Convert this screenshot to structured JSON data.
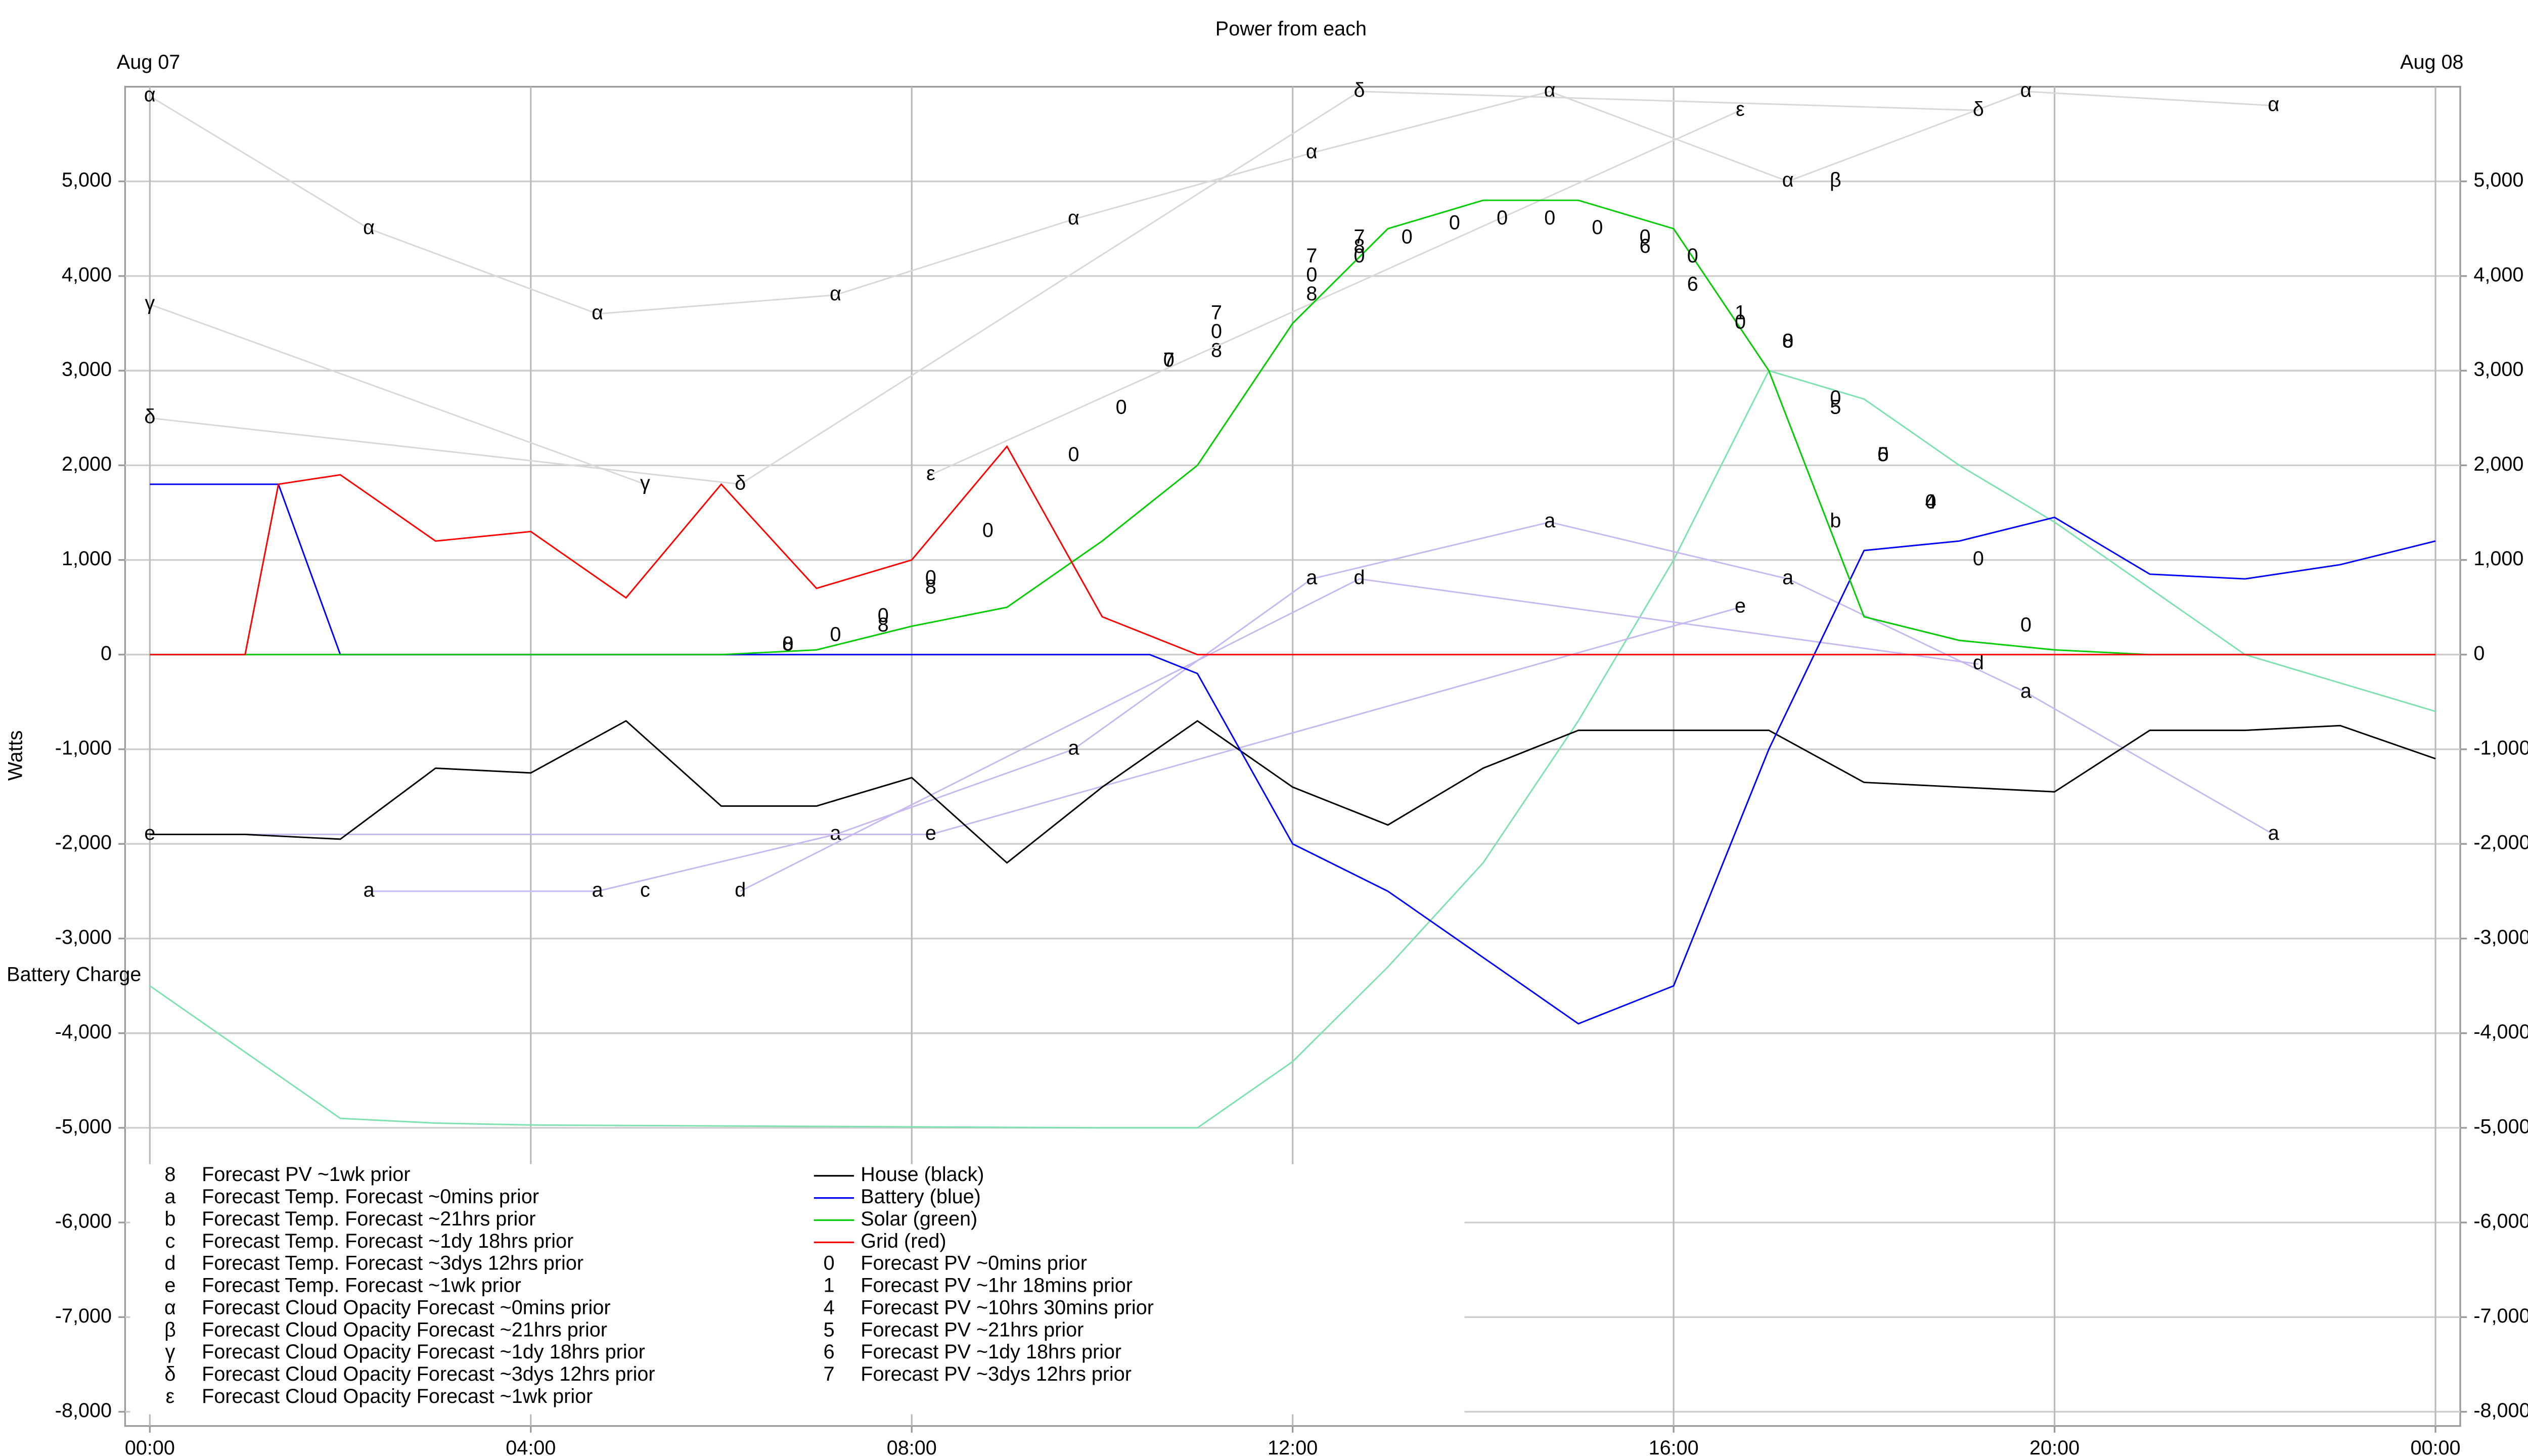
{
  "chart_data": {
    "type": "line",
    "title": "Power from each",
    "y_label": "Watts",
    "date_start": "Aug 07",
    "date_end": "Aug 08",
    "xlim": [
      -0.26,
      24.26
    ],
    "xticks": [
      {
        "value": 0,
        "label": "00:00"
      },
      {
        "value": 4,
        "label": "04:00"
      },
      {
        "value": 8,
        "label": "08:00"
      },
      {
        "value": 12,
        "label": "12:00"
      },
      {
        "value": 16,
        "label": "16:00"
      },
      {
        "value": 20,
        "label": "20:00"
      },
      {
        "value": 24,
        "label": "00:00"
      }
    ],
    "ylim": [
      -8150,
      6000
    ],
    "yticks": [
      {
        "value": -8000,
        "label": "-8,000"
      },
      {
        "value": -7000,
        "label": "-7,000"
      },
      {
        "value": -6000,
        "label": "-6,000"
      },
      {
        "value": -5000,
        "label": "-5,000"
      },
      {
        "value": -4000,
        "label": "-4,000"
      },
      {
        "value": -3000,
        "label": "-3,000"
      },
      {
        "value": -2000,
        "label": "-2,000"
      },
      {
        "value": -1000,
        "label": "-1,000"
      },
      0,
      {
        "value": 1000,
        "label": "1,000"
      },
      {
        "value": 2000,
        "label": "2,000"
      },
      {
        "value": 3000,
        "label": "3,000"
      },
      {
        "value": 4000,
        "label": "4,000"
      },
      {
        "value": 5000,
        "label": "5,000"
      }
    ],
    "grid": true,
    "battery_charge": {
      "name": "Battery Charge",
      "color": "#7fe0b0",
      "x": [
        0,
        1,
        2,
        3,
        4,
        6,
        8,
        10,
        11,
        12,
        13,
        14,
        15,
        16,
        17,
        18,
        19,
        20,
        21,
        22,
        23,
        24
      ],
      "values": [
        -3500,
        -4200,
        -4900,
        -4950,
        -4970,
        -4980,
        -4990,
        -5000,
        -5000,
        -4300,
        -3300,
        -2200,
        -700,
        1000,
        3000,
        2700,
        2000,
        1400,
        700,
        0,
        -300,
        -600
      ]
    },
    "series": [
      {
        "name": "Forecast PV ~1wk prior",
        "symbol": "8",
        "color": "#000000",
        "x": [
          6.7,
          7.7,
          8.2,
          11.2,
          12.2,
          12.7,
          17.2
        ],
        "values": [
          100,
          300,
          700,
          3200,
          3800,
          4300,
          3300
        ]
      },
      {
        "name": "Forecast Temp. Forecast ~0mins prior",
        "symbol": "a",
        "color": "#c8b8f0",
        "x": [
          2.3,
          4.7,
          7.2,
          9.7,
          12.2,
          14.7,
          17.2,
          19.7,
          22.3
        ],
        "values": [
          -2500,
          -2500,
          -1900,
          -1000,
          800,
          1400,
          800,
          -400,
          -1900
        ]
      },
      {
        "name": "Forecast Temp. Forecast ~21hrs prior",
        "symbol": "b",
        "color": "#c8b8f0",
        "x": [
          17.7
        ],
        "values": [
          1400
        ]
      },
      {
        "name": "Forecast Temp. Forecast ~1dy 18hrs prior",
        "symbol": "c",
        "color": "#c8b8f0",
        "x": [
          5.2
        ],
        "values": [
          -2500
        ]
      },
      {
        "name": "Forecast Temp. Forecast ~3dys 12hrs prior",
        "symbol": "d",
        "color": "#c8b8f0",
        "x": [
          6.2,
          12.7,
          19.2
        ],
        "values": [
          -2500,
          800,
          -100
        ]
      },
      {
        "name": "Forecast Temp. Forecast ~1wk prior",
        "symbol": "e",
        "color": "#c8b8f0",
        "x": [
          0,
          8.2,
          16.7
        ],
        "values": [
          -1900,
          -1900,
          500
        ]
      },
      {
        "name": "Forecast Cloud Opacity Forecast ~0mins prior",
        "symbol": "α",
        "color": "#d8d8d8",
        "x": [
          0,
          2.3,
          4.7,
          7.2,
          9.7,
          12.2,
          14.7,
          17.2,
          19.7,
          22.3
        ],
        "values": [
          5900,
          4500,
          3600,
          3800,
          4600,
          5300,
          5950,
          5000,
          5950,
          5800
        ]
      },
      {
        "name": "Forecast Cloud Opacity Forecast ~21hrs prior",
        "symbol": "β",
        "color": "#d8d8d8",
        "x": [
          17.7
        ],
        "values": [
          5000
        ]
      },
      {
        "name": "Forecast Cloud Opacity Forecast ~1dy 18hrs prior",
        "symbol": "γ",
        "color": "#d8d8d8",
        "x": [
          0,
          5.2
        ],
        "values": [
          3700,
          1800
        ]
      },
      {
        "name": "Forecast Cloud Opacity Forecast ~3dys 12hrs prior",
        "symbol": "δ",
        "color": "#d8d8d8",
        "x": [
          0,
          6.2,
          12.7,
          19.2
        ],
        "values": [
          2500,
          1800,
          5950,
          5750
        ]
      },
      {
        "name": "Forecast Cloud Opacity Forecast ~1wk prior",
        "symbol": "ε",
        "color": "#d8d8d8",
        "x": [
          8.2,
          16.7
        ],
        "values": [
          1900,
          5750
        ]
      },
      {
        "name": "House (black)",
        "color": "#000000",
        "x": [
          0,
          1,
          2,
          3,
          4,
          5,
          6,
          7,
          8,
          9,
          10,
          11,
          12,
          13,
          14,
          15,
          16,
          17,
          18,
          19,
          20,
          21,
          22,
          23,
          24
        ],
        "values": [
          -1900,
          -1900,
          -1950,
          -1200,
          -1250,
          -700,
          -1600,
          -1600,
          -1300,
          -2200,
          -1400,
          -700,
          -1400,
          -1800,
          -1200,
          -800,
          -800,
          -800,
          -1350,
          -1400,
          -1450,
          -800,
          -800,
          -750,
          -1100
        ]
      },
      {
        "name": "Battery (blue)",
        "color": "#0000ff",
        "x": [
          0,
          1,
          1.35,
          2,
          4,
          6,
          8,
          10,
          10.5,
          11,
          12,
          13,
          14,
          15,
          16,
          17,
          18,
          19,
          20,
          21,
          22,
          23,
          24
        ],
        "values": [
          1800,
          1800,
          1800,
          0,
          0,
          0,
          0,
          0,
          0,
          -200,
          -2000,
          -2500,
          -3200,
          -3900,
          -3500,
          -1000,
          1100,
          1200,
          1450,
          850,
          800,
          950,
          1200
        ]
      },
      {
        "name": "Solar (green)",
        "color": "#00cc00",
        "x": [
          0,
          2,
          4,
          6,
          7,
          8,
          9,
          10,
          11,
          12,
          13,
          14,
          15,
          16,
          17,
          18,
          19,
          20,
          21,
          22,
          23,
          24
        ],
        "values": [
          0,
          0,
          0,
          0,
          50,
          300,
          500,
          1200,
          2000,
          3500,
          4500,
          4800,
          4800,
          4500,
          3000,
          400,
          150,
          50,
          0,
          0,
          0,
          0
        ]
      },
      {
        "name": "Grid (red)",
        "color": "#ff0000",
        "x": [
          0,
          1,
          1.35,
          2,
          3,
          4,
          5,
          6,
          7,
          8,
          9,
          10,
          11,
          12,
          14,
          16,
          18,
          20,
          22,
          24
        ],
        "values": [
          0,
          0,
          1800,
          1900,
          1200,
          1300,
          600,
          1800,
          700,
          1000,
          2200,
          400,
          0,
          0,
          0,
          0,
          0,
          0,
          0,
          0
        ]
      },
      {
        "name": "Forecast PV ~0mins prior",
        "symbol": "0",
        "color": "#000000",
        "x": [
          6.7,
          7.2,
          7.7,
          8.2,
          8.8,
          9.7,
          10.2,
          10.7,
          11.2,
          12.2,
          12.7,
          13.2,
          13.7,
          14.2,
          14.7,
          15.2,
          15.7,
          16.2,
          16.7,
          17.2,
          17.7,
          18.2,
          18.7,
          19.2,
          19.7
        ],
        "values": [
          100,
          200,
          400,
          800,
          1300,
          2100,
          2600,
          3100,
          3400,
          4000,
          4200,
          4400,
          4550,
          4600,
          4600,
          4500,
          4400,
          4200,
          3500,
          3300,
          2700,
          2100,
          1600,
          1000,
          300
        ]
      },
      {
        "name": "Forecast PV ~1hr 18mins prior",
        "symbol": "1",
        "color": "#000000",
        "x": [
          16.7
        ],
        "values": [
          3600
        ]
      },
      {
        "name": "Forecast PV ~10hrs 30mins prior",
        "symbol": "4",
        "color": "#000000",
        "x": [
          18.7
        ],
        "values": [
          1600
        ]
      },
      {
        "name": "Forecast PV ~21hrs prior",
        "symbol": "5",
        "color": "#000000",
        "x": [
          17.7,
          18.2
        ],
        "values": [
          2600,
          2100
        ]
      },
      {
        "name": "Forecast PV ~1dy 18hrs prior",
        "symbol": "6",
        "color": "#000000",
        "x": [
          15.7,
          16.2
        ],
        "values": [
          4300,
          3900
        ]
      },
      {
        "name": "Forecast PV ~3dys 12hrs prior",
        "symbol": "7",
        "color": "#000000",
        "x": [
          10.7,
          11.2,
          12.2,
          12.7
        ],
        "values": [
          3100,
          3600,
          4200,
          4400
        ]
      }
    ]
  }
}
